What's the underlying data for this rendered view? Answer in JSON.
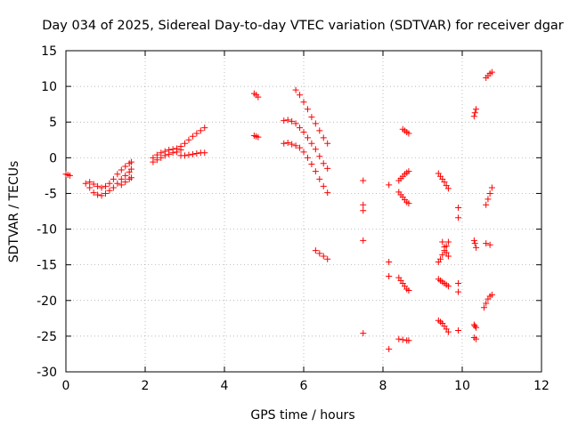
{
  "chart_data": {
    "type": "scatter",
    "title": "Day 034 of 2025, Sidereal Day-to-day VTEC variation (SDTVAR) for receiver dgar",
    "xlabel": "GPS time / hours",
    "ylabel": "SDTVAR / TECUs",
    "xlim": [
      0,
      12
    ],
    "ylim": [
      -30,
      15
    ],
    "xticks": [
      0,
      2,
      4,
      6,
      8,
      10,
      12
    ],
    "yticks": [
      -30,
      -25,
      -20,
      -15,
      -10,
      -5,
      0,
      5,
      10,
      15
    ],
    "grid": true,
    "marker": "+",
    "marker_color": "#ff0000",
    "series": [
      {
        "name": "s01",
        "x": [
          0.0,
          0.05,
          0.1
        ],
        "y": [
          -2.3,
          -2.4,
          -2.5
        ]
      },
      {
        "name": "s02",
        "x": [
          0.5,
          0.6,
          0.7,
          0.8,
          0.9,
          1.0,
          1.1,
          1.2,
          1.3,
          1.4,
          1.5,
          1.6,
          1.65
        ],
        "y": [
          -3.6,
          -4.2,
          -4.9,
          -5.2,
          -5.3,
          -5.0,
          -4.6,
          -4.2,
          -3.6,
          -3.0,
          -2.5,
          -2.0,
          -1.6
        ]
      },
      {
        "name": "s03",
        "x": [
          0.6,
          0.7,
          0.8,
          0.9,
          1.0,
          1.1,
          1.2,
          1.3,
          1.4,
          1.5,
          1.6,
          1.65
        ],
        "y": [
          -3.4,
          -3.7,
          -4.0,
          -4.2,
          -4.0,
          -3.6,
          -3.0,
          -2.3,
          -1.7,
          -1.2,
          -0.8,
          -0.6
        ]
      },
      {
        "name": "s04",
        "x": [
          1.4,
          1.5,
          1.6,
          1.65
        ],
        "y": [
          -3.8,
          -3.4,
          -3.0,
          -2.8
        ]
      },
      {
        "name": "s05",
        "x": [
          2.2,
          2.3,
          2.4,
          2.5,
          2.6,
          2.7,
          2.8,
          2.9
        ],
        "y": [
          0.0,
          0.4,
          0.7,
          0.9,
          1.1,
          1.2,
          1.3,
          1.1
        ]
      },
      {
        "name": "s06",
        "x": [
          2.2,
          2.3,
          2.4,
          2.5,
          2.6,
          2.7,
          2.8
        ],
        "y": [
          -0.6,
          -0.3,
          0.0,
          0.3,
          0.5,
          0.7,
          0.8
        ]
      },
      {
        "name": "s07",
        "x": [
          2.9,
          3.0,
          3.1,
          3.2,
          3.3,
          3.4,
          3.5
        ],
        "y": [
          1.6,
          2.0,
          2.5,
          3.0,
          3.4,
          3.8,
          4.2
        ]
      },
      {
        "name": "s08",
        "x": [
          2.9,
          3.0,
          3.1,
          3.2,
          3.3,
          3.4,
          3.5
        ],
        "y": [
          0.3,
          0.3,
          0.4,
          0.5,
          0.6,
          0.7,
          0.7
        ]
      },
      {
        "name": "s09",
        "x": [
          4.75,
          4.8,
          4.85
        ],
        "y": [
          9.0,
          8.8,
          8.5
        ]
      },
      {
        "name": "s10",
        "x": [
          4.75,
          4.8,
          4.85
        ],
        "y": [
          3.1,
          3.0,
          2.9
        ]
      },
      {
        "name": "s11",
        "x": [
          5.8,
          5.9,
          6.0,
          6.1,
          6.2,
          6.3,
          6.4,
          6.5,
          6.6
        ],
        "y": [
          9.5,
          8.8,
          7.8,
          6.8,
          5.7,
          4.8,
          3.8,
          2.8,
          2.0
        ]
      },
      {
        "name": "s12",
        "x": [
          5.5,
          5.6,
          5.7,
          5.8,
          5.9,
          6.0,
          6.1,
          6.2,
          6.3,
          6.4,
          6.5,
          6.6
        ],
        "y": [
          5.2,
          5.3,
          5.1,
          4.8,
          4.2,
          3.6,
          2.8,
          2.0,
          1.2,
          0.2,
          -0.8,
          -1.5
        ]
      },
      {
        "name": "s13",
        "x": [
          5.5,
          5.6,
          5.7,
          5.8,
          5.9,
          6.0,
          6.1,
          6.2,
          6.3,
          6.4,
          6.5,
          6.6
        ],
        "y": [
          2.0,
          2.1,
          1.9,
          1.7,
          1.4,
          0.8,
          0.0,
          -0.9,
          -1.9,
          -3.0,
          -4.0,
          -4.9
        ]
      },
      {
        "name": "s14",
        "x": [
          6.3,
          6.4,
          6.5,
          6.6
        ],
        "y": [
          -13.0,
          -13.4,
          -13.8,
          -14.2
        ]
      },
      {
        "name": "s15",
        "x": [
          7.5,
          7.5,
          7.5,
          7.5,
          7.5
        ],
        "y": [
          -3.2,
          -6.6,
          -7.4,
          -11.6,
          -24.6
        ]
      },
      {
        "name": "s16",
        "x": [
          8.15,
          8.15,
          8.15,
          8.15
        ],
        "y": [
          -3.8,
          -14.6,
          -16.6,
          -26.8
        ]
      },
      {
        "name": "s17",
        "x": [
          8.4,
          8.45,
          8.5,
          8.55,
          8.6,
          8.65
        ],
        "y": [
          -3.2,
          -2.9,
          -2.6,
          -2.3,
          -2.1,
          -1.9
        ]
      },
      {
        "name": "s18",
        "x": [
          8.5,
          8.55,
          8.6,
          8.65
        ],
        "y": [
          4.0,
          3.8,
          3.6,
          3.4
        ]
      },
      {
        "name": "s19",
        "x": [
          8.4,
          8.45,
          8.5,
          8.55,
          8.6,
          8.65
        ],
        "y": [
          -4.8,
          -5.2,
          -5.5,
          -5.9,
          -6.2,
          -6.4
        ]
      },
      {
        "name": "s20",
        "x": [
          8.4,
          8.45,
          8.5,
          8.55,
          8.6,
          8.65
        ],
        "y": [
          -16.8,
          -17.2,
          -17.6,
          -18.0,
          -18.4,
          -18.6
        ]
      },
      {
        "name": "s21",
        "x": [
          8.4,
          8.5,
          8.6,
          8.65
        ],
        "y": [
          -25.4,
          -25.5,
          -25.6,
          -25.6
        ]
      },
      {
        "name": "s22",
        "x": [
          9.4,
          9.45,
          9.5,
          9.55,
          9.6,
          9.65
        ],
        "y": [
          -2.2,
          -2.6,
          -3.0,
          -3.4,
          -3.9,
          -4.3
        ]
      },
      {
        "name": "s23",
        "x": [
          9.4,
          9.45,
          9.5,
          9.55,
          9.6,
          9.65
        ],
        "y": [
          -14.6,
          -14.2,
          -13.6,
          -13.0,
          -12.4,
          -11.8
        ]
      },
      {
        "name": "s24",
        "x": [
          9.5,
          9.55,
          9.6,
          9.65
        ],
        "y": [
          -11.8,
          -12.5,
          -13.3,
          -13.8
        ]
      },
      {
        "name": "s25",
        "x": [
          9.4,
          9.45,
          9.5,
          9.55,
          9.6,
          9.65
        ],
        "y": [
          -17.0,
          -17.2,
          -17.4,
          -17.6,
          -17.8,
          -18.0
        ]
      },
      {
        "name": "s26",
        "x": [
          9.4,
          9.45,
          9.5,
          9.55,
          9.6,
          9.65
        ],
        "y": [
          -22.8,
          -23.0,
          -23.2,
          -23.6,
          -24.0,
          -24.4
        ]
      },
      {
        "name": "s27",
        "x": [
          9.9,
          9.9,
          9.9,
          9.9,
          9.9
        ],
        "y": [
          -7.0,
          -8.4,
          -17.6,
          -18.8,
          -24.2
        ]
      },
      {
        "name": "s28",
        "x": [
          10.3,
          10.32,
          10.35
        ],
        "y": [
          5.8,
          6.3,
          6.8
        ]
      },
      {
        "name": "s29",
        "x": [
          10.3,
          10.32,
          10.35
        ],
        "y": [
          -11.6,
          -12.0,
          -12.6
        ]
      },
      {
        "name": "s30",
        "x": [
          10.3,
          10.32,
          10.35
        ],
        "y": [
          -23.4,
          -23.6,
          -23.8
        ]
      },
      {
        "name": "s31",
        "x": [
          10.3,
          10.35
        ],
        "y": [
          -25.2,
          -25.4
        ]
      },
      {
        "name": "s32",
        "x": [
          10.6,
          10.65,
          10.7,
          10.75
        ],
        "y": [
          11.2,
          11.5,
          11.8,
          12.0
        ]
      },
      {
        "name": "s33",
        "x": [
          10.6,
          10.65,
          10.7,
          10.75
        ],
        "y": [
          -6.6,
          -5.8,
          -5.0,
          -4.2
        ]
      },
      {
        "name": "s34",
        "x": [
          10.6,
          10.7
        ],
        "y": [
          -12.0,
          -12.2
        ]
      },
      {
        "name": "s35",
        "x": [
          10.55,
          10.6,
          10.65,
          10.7,
          10.75
        ],
        "y": [
          -21.0,
          -20.4,
          -19.8,
          -19.4,
          -19.2
        ]
      }
    ]
  }
}
